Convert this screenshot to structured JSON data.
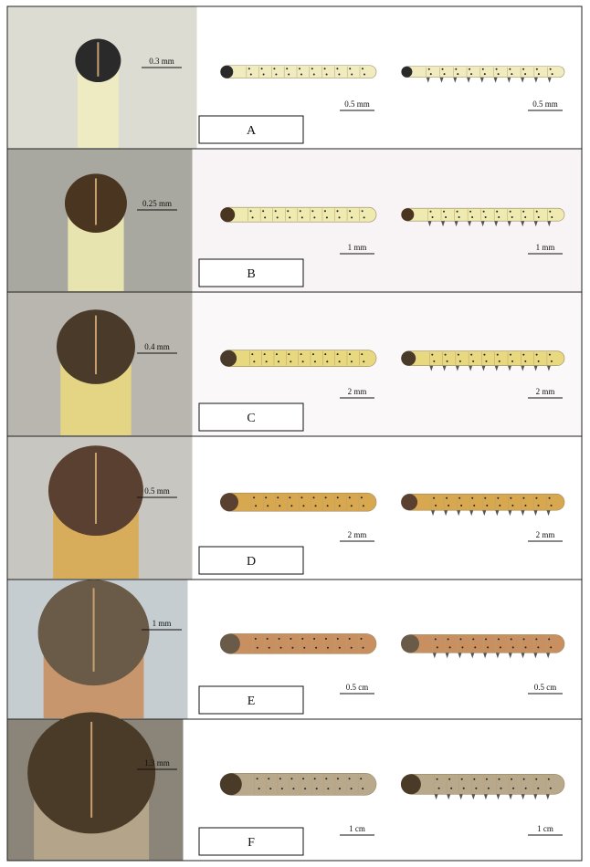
{
  "panels": [
    {
      "label": "A",
      "head_scale": "0.3 mm",
      "scales": [
        "0.5 mm",
        "0.5 mm"
      ]
    },
    {
      "label": "B",
      "head_scale": "0.25 mm",
      "scales": [
        "1 mm",
        "1 mm"
      ]
    },
    {
      "label": "C",
      "head_scale": "0.4 mm",
      "scales": [
        "2 mm",
        "2 mm"
      ]
    },
    {
      "label": "D",
      "head_scale": "0.5 mm",
      "scales": [
        "2 mm",
        "2 mm"
      ]
    },
    {
      "label": "E",
      "head_scale": "1 mm",
      "scales": [
        "0.5 cm",
        "0.5 cm"
      ]
    },
    {
      "label": "F",
      "head_scale": "1.3 mm",
      "scales": [
        "1 cm",
        "1 cm"
      ]
    }
  ]
}
